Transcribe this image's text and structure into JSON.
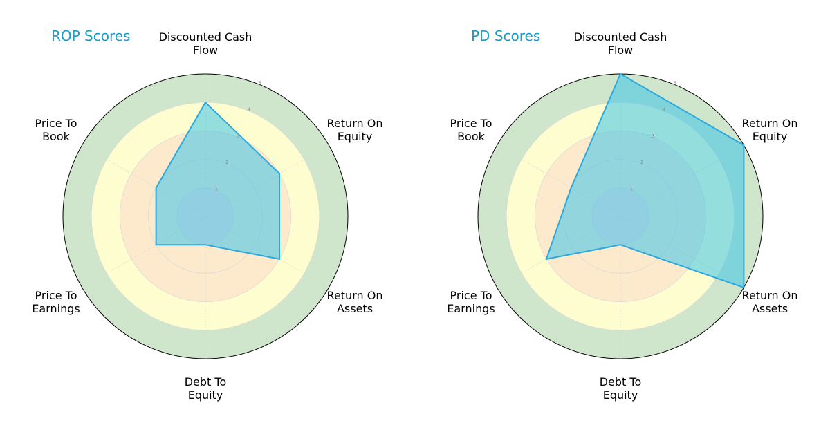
{
  "colors": {
    "title": "#1a9bc4",
    "fill": "#3cc4ea",
    "stroke": "#29a9e0",
    "ring_red": "#fbdcdc",
    "ring_orange": "#fde9cc",
    "ring_yellow": "#fefdd0",
    "ring_green": "#d0e6cc"
  },
  "chart_data": [
    {
      "type": "radar",
      "title": "ROP Scores",
      "categories": [
        "Discounted Cash Flow",
        "Return On Equity",
        "Return On Assets",
        "Debt To Equity",
        "Price To Earnings",
        "Price To Book"
      ],
      "values": [
        4,
        3,
        3,
        1,
        2,
        2
      ],
      "rlim": [
        0,
        5
      ],
      "rticks": [
        1,
        2,
        3,
        4,
        5
      ],
      "background_bands": [
        "0-1 red/pink",
        "1-3 orange",
        "3-4 yellow",
        "4-5 green"
      ]
    },
    {
      "type": "radar",
      "title": "PD Scores",
      "categories": [
        "Discounted Cash Flow",
        "Return On Equity",
        "Return On Assets",
        "Debt To Equity",
        "Price To Earnings",
        "Price To Book"
      ],
      "values": [
        5,
        5,
        5,
        1,
        3,
        2
      ],
      "rlim": [
        0,
        5
      ],
      "rticks": [
        1,
        2,
        3,
        4,
        5
      ],
      "background_bands": [
        "0-1 red/pink",
        "1-3 orange",
        "3-4 yellow",
        "4-5 green"
      ]
    }
  ],
  "left": {
    "title": "ROP Scores",
    "labels": [
      "Discounted Cash\nFlow",
      "Return On\nEquity",
      "Return On\nAssets",
      "Debt To\nEquity",
      "Price To\nEarnings",
      "Price To\nBook"
    ]
  },
  "right": {
    "title": "PD Scores",
    "labels": [
      "Discounted Cash\nFlow",
      "Return On\nEquity",
      "Return On\nAssets",
      "Debt To\nEquity",
      "Price To\nEarnings",
      "Price To\nBook"
    ]
  }
}
